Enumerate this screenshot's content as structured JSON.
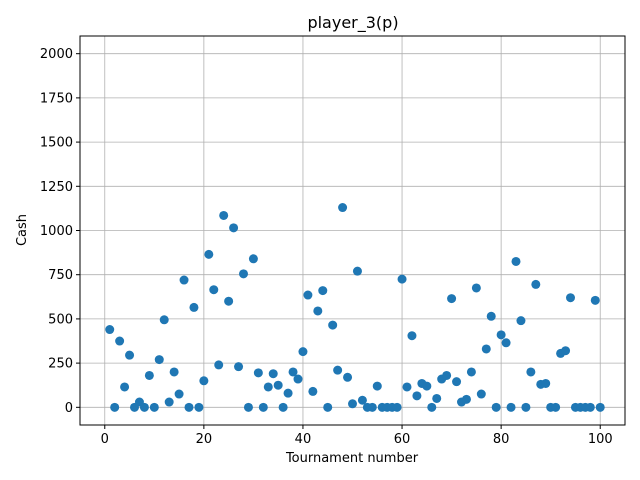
{
  "chart_data": {
    "type": "scatter",
    "title": "player_3(p)",
    "xlabel": "Tournament number",
    "ylabel": "Cash",
    "xlim": [
      -5,
      105
    ],
    "ylim": [
      -100,
      2100
    ],
    "xticks": [
      0,
      20,
      40,
      60,
      80,
      100
    ],
    "yticks": [
      0,
      250,
      500,
      750,
      1000,
      1250,
      1500,
      1750,
      2000
    ],
    "grid": true,
    "marker_color": "#1f77b4",
    "series": [
      {
        "x": [
          1,
          2,
          3,
          4,
          5,
          6,
          7,
          8,
          9,
          10,
          11,
          12,
          13,
          14,
          15,
          16,
          17,
          18,
          19,
          20,
          21,
          22,
          23,
          24,
          25,
          26,
          27,
          28,
          29,
          30,
          31,
          32,
          33,
          34,
          35,
          36,
          37,
          38,
          39,
          40,
          41,
          42,
          43,
          44,
          45,
          46,
          47,
          48,
          49,
          50,
          51,
          52,
          53,
          54,
          55,
          56,
          57,
          58,
          59,
          60,
          61,
          62,
          63,
          64,
          65,
          66,
          67,
          68,
          69,
          70,
          71,
          72,
          73,
          74,
          75,
          76,
          77,
          78,
          79,
          80,
          81,
          82,
          83,
          84,
          85,
          86,
          87,
          88,
          89,
          90,
          91,
          92,
          93,
          94,
          95,
          96,
          97,
          98,
          99,
          100
        ],
        "values": [
          440,
          0,
          375,
          115,
          295,
          0,
          30,
          0,
          180,
          0,
          270,
          495,
          30,
          200,
          75,
          720,
          0,
          565,
          0,
          150,
          865,
          665,
          240,
          1085,
          600,
          1015,
          230,
          755,
          0,
          840,
          195,
          0,
          115,
          190,
          125,
          0,
          80,
          200,
          160,
          315,
          635,
          90,
          545,
          660,
          0,
          465,
          210,
          1130,
          170,
          20,
          770,
          40,
          0,
          0,
          120,
          0,
          0,
          0,
          0,
          725,
          115,
          405,
          65,
          135,
          120,
          0,
          50,
          160,
          180,
          615,
          145,
          30,
          45,
          200,
          675,
          75,
          330,
          515,
          0,
          410,
          365,
          0,
          825,
          490,
          0,
          200,
          695,
          130,
          135,
          0,
          0,
          305,
          320,
          620,
          0,
          0,
          0,
          0,
          605,
          0
        ]
      }
    ]
  }
}
